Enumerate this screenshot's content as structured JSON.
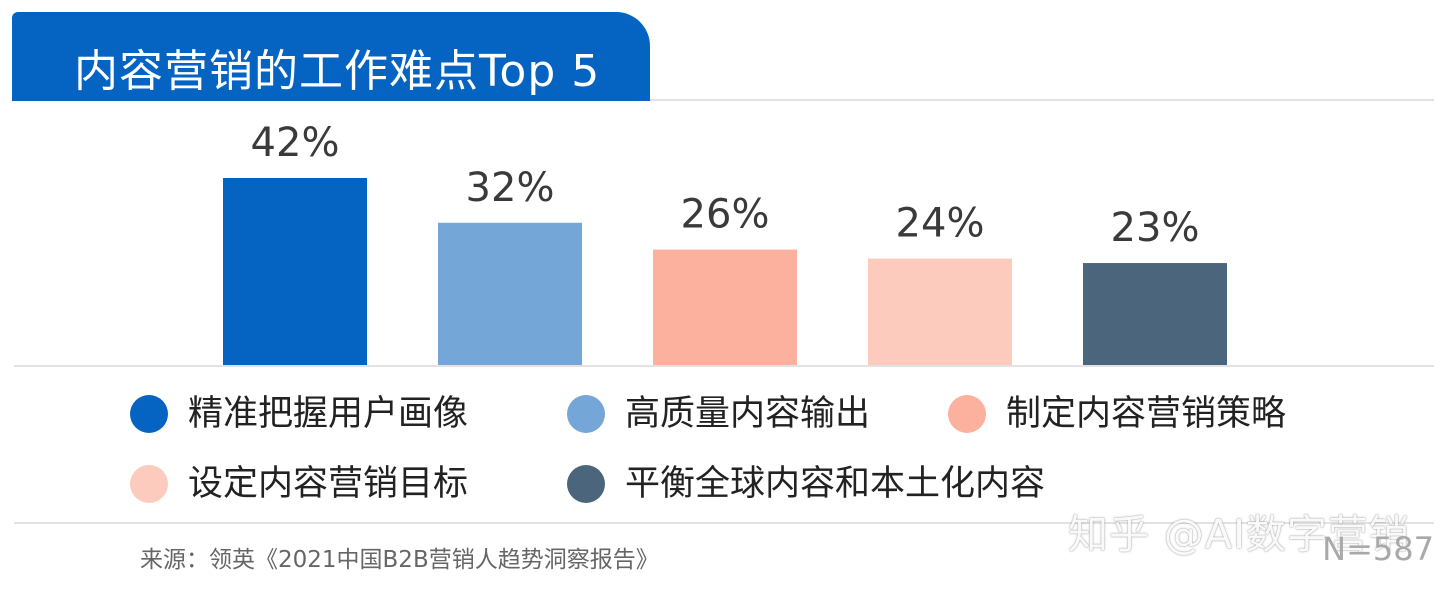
{
  "header": {
    "title": "内容营销的工作难点Top 5"
  },
  "chart_data": {
    "type": "bar",
    "title": "内容营销的工作难点Top 5",
    "categories": [
      "精准把握用户画像",
      "高质量内容输出",
      "制定内容营销策略",
      "设定内容营销目标",
      "平衡全球内容和本土化内容"
    ],
    "values": [
      42,
      32,
      26,
      24,
      23
    ],
    "value_labels": [
      "42%",
      "32%",
      "26%",
      "24%",
      "23%"
    ],
    "colors": [
      "#0563c1",
      "#74a6d8",
      "#fbb19e",
      "#fccbbd",
      "#4b667c"
    ],
    "unit": "%",
    "ylim": [
      0,
      42
    ],
    "legend_position": "bottom",
    "grid": false
  },
  "footer": {
    "source": "来源：领英《2021中国B2B营销人趋势洞察报告》",
    "sample_size": "N=587",
    "watermark": "知乎 @AI数字营销"
  }
}
